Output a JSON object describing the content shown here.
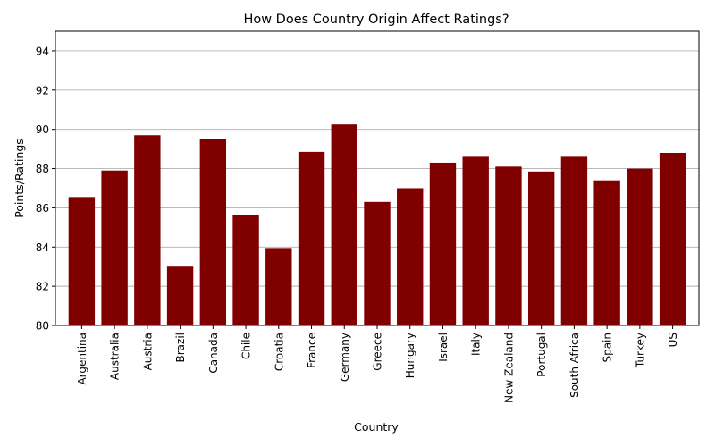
{
  "chart_data": {
    "type": "bar",
    "title": "How Does Country Origin Affect Ratings?",
    "xlabel": "Country",
    "ylabel": "Points/Ratings",
    "ylim": [
      80,
      95
    ],
    "yticks": [
      80,
      82,
      84,
      86,
      88,
      90,
      92,
      94
    ],
    "grid": "y",
    "bar_color": "#800000",
    "categories": [
      "Argentina",
      "Australia",
      "Austria",
      "Brazil",
      "Canada",
      "Chile",
      "Croatia",
      "France",
      "Germany",
      "Greece",
      "Hungary",
      "Israel",
      "Italy",
      "New Zealand",
      "Portugal",
      "South Africa",
      "Spain",
      "Turkey",
      "US"
    ],
    "values": [
      86.55,
      87.9,
      89.7,
      83.0,
      89.5,
      85.65,
      83.95,
      88.85,
      90.25,
      86.3,
      87.0,
      88.3,
      88.6,
      88.1,
      87.85,
      88.6,
      87.4,
      88.0,
      88.8
    ]
  }
}
